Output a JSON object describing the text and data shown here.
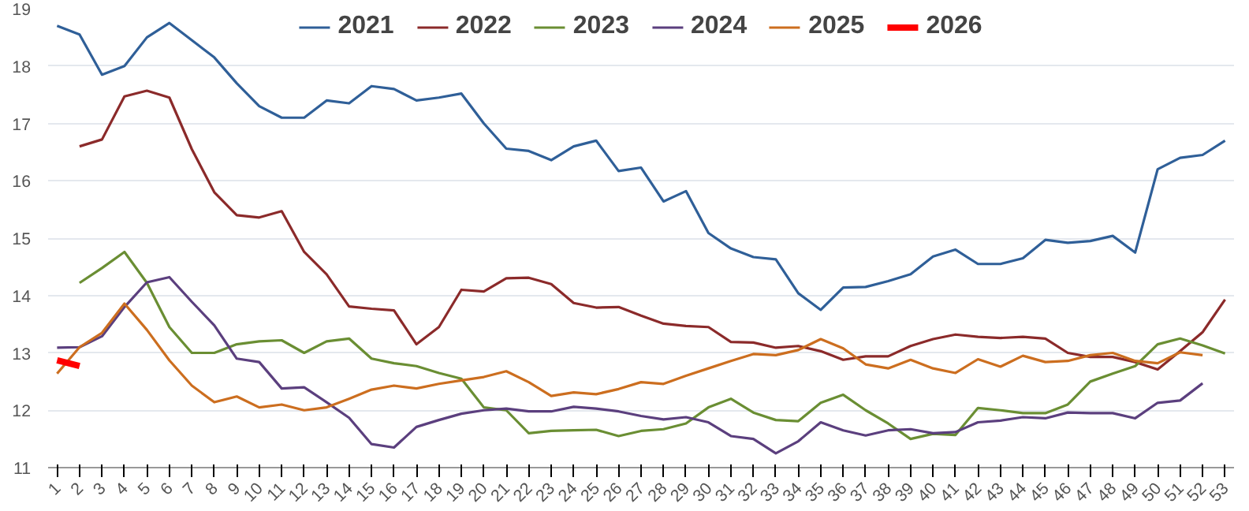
{
  "chart_data": {
    "type": "line",
    "categories": [
      "1",
      "2",
      "3",
      "4",
      "5",
      "6",
      "7",
      "8",
      "9",
      "10",
      "11",
      "12",
      "13",
      "14",
      "15",
      "16",
      "17",
      "18",
      "19",
      "20",
      "21",
      "22",
      "23",
      "24",
      "25",
      "26",
      "27",
      "28",
      "29",
      "30",
      "31",
      "32",
      "33",
      "34",
      "35",
      "36",
      "37",
      "38",
      "39",
      "40",
      "41",
      "42",
      "43",
      "44",
      "45",
      "46",
      "47",
      "48",
      "49",
      "50",
      "51",
      "52",
      "53"
    ],
    "series": [
      {
        "name": "2021",
        "color": "#2f5f98",
        "values": [
          18.7,
          18.55,
          17.85,
          18.0,
          18.5,
          18.75,
          18.45,
          18.15,
          17.7,
          17.3,
          17.1,
          17.1,
          17.4,
          17.35,
          17.65,
          17.6,
          17.4,
          17.45,
          17.52,
          17.0,
          16.56,
          16.52,
          16.36,
          16.6,
          16.7,
          16.17,
          16.23,
          15.64,
          15.82,
          15.09,
          14.82,
          14.67,
          14.63,
          14.04,
          13.75,
          14.14,
          14.15,
          14.25,
          14.37,
          14.68,
          14.8,
          14.55,
          14.55,
          14.65,
          14.97,
          14.92,
          14.95,
          15.04,
          14.75,
          16.2,
          16.4,
          16.45,
          16.7
        ]
      },
      {
        "name": "2022",
        "color": "#8b2a2a",
        "values": [
          null,
          16.6,
          16.72,
          17.47,
          17.57,
          17.45,
          16.55,
          15.8,
          15.4,
          15.36,
          15.47,
          14.76,
          14.37,
          13.81,
          13.77,
          13.74,
          13.15,
          13.45,
          14.1,
          14.07,
          14.3,
          14.31,
          14.2,
          13.87,
          13.79,
          13.8,
          13.65,
          13.51,
          13.47,
          13.45,
          13.19,
          13.18,
          13.09,
          13.12,
          13.03,
          12.88,
          12.94,
          12.94,
          13.12,
          13.24,
          13.32,
          13.28,
          13.26,
          13.28,
          13.25,
          13.0,
          12.93,
          12.93,
          12.84,
          12.71,
          13.03,
          13.36,
          13.93
        ]
      },
      {
        "name": "2023",
        "color": "#6a8e33",
        "values": [
          null,
          14.22,
          14.48,
          14.76,
          14.22,
          13.45,
          13.0,
          13.0,
          13.15,
          13.2,
          13.22,
          13.0,
          13.2,
          13.25,
          12.9,
          12.82,
          12.77,
          12.65,
          12.55,
          12.05,
          12.0,
          11.6,
          11.64,
          11.65,
          11.66,
          11.55,
          11.64,
          11.67,
          11.77,
          12.05,
          12.2,
          11.96,
          11.83,
          11.81,
          12.13,
          12.27,
          12.0,
          11.77,
          11.5,
          11.59,
          11.57,
          12.04,
          12.0,
          11.95,
          11.95,
          12.1,
          12.5,
          12.64,
          12.77,
          13.15,
          13.25,
          13.13,
          12.99
        ]
      },
      {
        "name": "2024",
        "color": "#5b3f7e",
        "values": [
          13.09,
          13.1,
          13.29,
          13.8,
          14.23,
          14.32,
          13.89,
          13.48,
          12.9,
          12.84,
          12.38,
          12.4,
          12.14,
          11.87,
          11.41,
          11.35,
          11.71,
          11.83,
          11.94,
          12.0,
          12.03,
          11.98,
          11.98,
          12.06,
          12.03,
          11.98,
          11.9,
          11.84,
          11.88,
          11.79,
          11.55,
          11.5,
          11.25,
          11.46,
          11.79,
          11.65,
          11.56,
          11.65,
          11.67,
          11.6,
          11.62,
          11.79,
          11.82,
          11.88,
          11.86,
          11.96,
          11.95,
          11.95,
          11.86,
          12.13,
          12.17,
          12.47,
          null
        ]
      },
      {
        "name": "2025",
        "color": "#cc6e1f",
        "values": [
          12.64,
          13.1,
          13.35,
          13.86,
          13.4,
          12.87,
          12.43,
          12.14,
          12.24,
          12.05,
          12.1,
          12.0,
          12.05,
          12.2,
          12.36,
          12.43,
          12.38,
          12.46,
          12.52,
          12.58,
          12.68,
          12.49,
          12.25,
          12.31,
          12.28,
          12.37,
          12.49,
          12.46,
          12.6,
          12.73,
          12.86,
          12.98,
          12.96,
          13.05,
          13.24,
          13.08,
          12.8,
          12.73,
          12.88,
          12.73,
          12.65,
          12.89,
          12.76,
          12.95,
          12.84,
          12.86,
          12.96,
          13.0,
          12.86,
          12.82,
          13.01,
          12.96,
          null
        ]
      },
      {
        "name": "2026",
        "color": "#ff0000",
        "values": [
          12.87,
          12.77,
          null,
          null,
          null,
          null,
          null,
          null,
          null,
          null,
          null,
          null,
          null,
          null,
          null,
          null,
          null,
          null,
          null,
          null,
          null,
          null,
          null,
          null,
          null,
          null,
          null,
          null,
          null,
          null,
          null,
          null,
          null,
          null,
          null,
          null,
          null,
          null,
          null,
          null,
          null,
          null,
          null,
          null,
          null,
          null,
          null,
          null,
          null,
          null,
          null,
          null,
          null
        ]
      }
    ],
    "ylim": [
      11,
      19
    ],
    "yticks": [
      11,
      12,
      13,
      14,
      15,
      16,
      17,
      18,
      19
    ],
    "grid": "y",
    "legend": "top",
    "marker": "none",
    "line_style": "solid"
  }
}
